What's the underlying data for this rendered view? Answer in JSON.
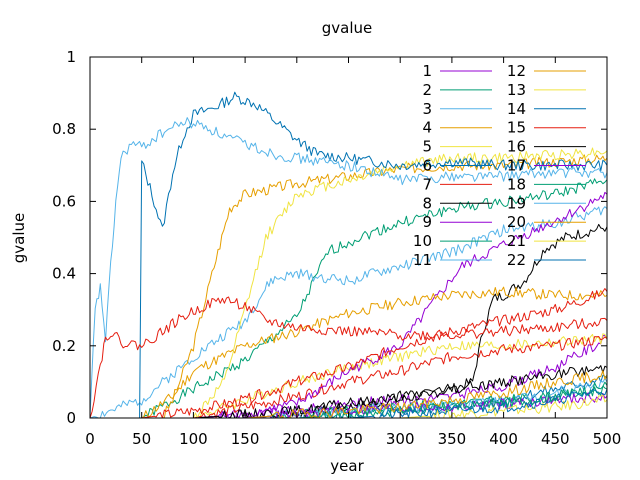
{
  "chart_data": {
    "type": "line",
    "title": "gvalue",
    "xlabel": "year",
    "ylabel": "gvalue",
    "xlim": [
      0,
      500
    ],
    "ylim": [
      0,
      1
    ],
    "x_ticks": [
      0,
      50,
      100,
      150,
      200,
      250,
      300,
      350,
      400,
      450,
      500
    ],
    "y_ticks": [
      0,
      0.2,
      0.4,
      0.6,
      0.8,
      1
    ],
    "grid": false,
    "legend_position": "top-right",
    "series": [
      {
        "name": "1",
        "color": "#9400d3",
        "points": [
          [
            0,
            0
          ],
          [
            100,
            0
          ],
          [
            150,
            0.01
          ],
          [
            200,
            0.02
          ],
          [
            250,
            0.04
          ],
          [
            300,
            0.05
          ],
          [
            350,
            0.06
          ],
          [
            400,
            0.09
          ],
          [
            450,
            0.14
          ],
          [
            500,
            0.22
          ]
        ]
      },
      {
        "name": "2",
        "color": "#009e73",
        "points": [
          [
            0,
            0
          ],
          [
            50,
            0
          ],
          [
            100,
            0.08
          ],
          [
            150,
            0.16
          ],
          [
            200,
            0.28
          ],
          [
            230,
            0.46
          ],
          [
            260,
            0.5
          ],
          [
            300,
            0.54
          ],
          [
            350,
            0.58
          ],
          [
            400,
            0.6
          ],
          [
            450,
            0.62
          ],
          [
            500,
            0.66
          ]
        ]
      },
      {
        "name": "3",
        "color": "#56b4e9",
        "points": [
          [
            0,
            0
          ],
          [
            50,
            0.05
          ],
          [
            100,
            0.17
          ],
          [
            150,
            0.27
          ],
          [
            175,
            0.38
          ],
          [
            200,
            0.4
          ],
          [
            250,
            0.38
          ],
          [
            300,
            0.42
          ],
          [
            350,
            0.46
          ],
          [
            400,
            0.52
          ],
          [
            450,
            0.54
          ],
          [
            500,
            0.58
          ]
        ]
      },
      {
        "name": "4",
        "color": "#e69f00",
        "points": [
          [
            0,
            0
          ],
          [
            70,
            0
          ],
          [
            80,
            0.05
          ],
          [
            100,
            0.2
          ],
          [
            120,
            0.42
          ],
          [
            135,
            0.58
          ],
          [
            150,
            0.62
          ],
          [
            200,
            0.65
          ],
          [
            250,
            0.67
          ],
          [
            300,
            0.69
          ],
          [
            350,
            0.7
          ],
          [
            400,
            0.7
          ],
          [
            450,
            0.71
          ],
          [
            500,
            0.72
          ]
        ]
      },
      {
        "name": "5",
        "color": "#f0e442",
        "points": [
          [
            0,
            0
          ],
          [
            100,
            0
          ],
          [
            150,
            0.05
          ],
          [
            200,
            0.1
          ],
          [
            250,
            0.14
          ],
          [
            300,
            0.17
          ],
          [
            350,
            0.2
          ],
          [
            400,
            0.2
          ],
          [
            450,
            0.21
          ],
          [
            500,
            0.22
          ]
        ]
      },
      {
        "name": "6",
        "color": "#0072b2",
        "points": [
          [
            0,
            0
          ],
          [
            200,
            0
          ],
          [
            250,
            0.01
          ],
          [
            300,
            0.02
          ],
          [
            350,
            0.03
          ],
          [
            400,
            0.05
          ],
          [
            450,
            0.08
          ],
          [
            500,
            0.11
          ]
        ]
      },
      {
        "name": "7",
        "color": "#e51e10",
        "points": [
          [
            0,
            0
          ],
          [
            100,
            0
          ],
          [
            150,
            0.03
          ],
          [
            200,
            0.06
          ],
          [
            250,
            0.1
          ],
          [
            300,
            0.13
          ],
          [
            350,
            0.17
          ],
          [
            400,
            0.19
          ],
          [
            450,
            0.2
          ],
          [
            500,
            0.22
          ]
        ]
      },
      {
        "name": "8",
        "color": "#000000",
        "points": [
          [
            0,
            0
          ],
          [
            150,
            0
          ],
          [
            200,
            0.01
          ],
          [
            250,
            0.03
          ],
          [
            300,
            0.05
          ],
          [
            350,
            0.08
          ],
          [
            370,
            0.1
          ],
          [
            380,
            0.24
          ],
          [
            390,
            0.33
          ],
          [
            400,
            0.34
          ],
          [
            420,
            0.38
          ],
          [
            440,
            0.47
          ],
          [
            460,
            0.5
          ],
          [
            500,
            0.53
          ]
        ]
      },
      {
        "name": "9",
        "color": "#9400d3",
        "points": [
          [
            0,
            0
          ],
          [
            100,
            0
          ],
          [
            150,
            0.01
          ],
          [
            200,
            0.04
          ],
          [
            250,
            0.13
          ],
          [
            300,
            0.2
          ],
          [
            340,
            0.35
          ],
          [
            360,
            0.42
          ],
          [
            380,
            0.45
          ],
          [
            400,
            0.48
          ],
          [
            430,
            0.52
          ],
          [
            460,
            0.56
          ],
          [
            500,
            0.62
          ]
        ]
      },
      {
        "name": "10",
        "color": "#009e73",
        "points": [
          [
            0,
            0
          ],
          [
            150,
            0
          ],
          [
            200,
            0.01
          ],
          [
            250,
            0.02
          ],
          [
            300,
            0.03
          ],
          [
            350,
            0.04
          ],
          [
            400,
            0.05
          ],
          [
            450,
            0.06
          ],
          [
            500,
            0.08
          ]
        ]
      },
      {
        "name": "11",
        "color": "#56b4e9",
        "points": [
          [
            0,
            0
          ],
          [
            150,
            0
          ],
          [
            200,
            0.01
          ],
          [
            250,
            0.02
          ],
          [
            300,
            0.03
          ],
          [
            350,
            0.04
          ],
          [
            400,
            0.05
          ],
          [
            450,
            0.07
          ],
          [
            500,
            0.1
          ]
        ]
      },
      {
        "name": "12",
        "color": "#e69f00",
        "points": [
          [
            0,
            0
          ],
          [
            50,
            0
          ],
          [
            80,
            0.06
          ],
          [
            100,
            0.13
          ],
          [
            150,
            0.2
          ],
          [
            200,
            0.24
          ],
          [
            250,
            0.29
          ],
          [
            300,
            0.32
          ],
          [
            350,
            0.34
          ],
          [
            400,
            0.35
          ],
          [
            450,
            0.34
          ],
          [
            500,
            0.34
          ]
        ]
      },
      {
        "name": "13",
        "color": "#f0e442",
        "points": [
          [
            0,
            0
          ],
          [
            100,
            0
          ],
          [
            130,
            0.1
          ],
          [
            150,
            0.3
          ],
          [
            170,
            0.5
          ],
          [
            200,
            0.62
          ],
          [
            250,
            0.66
          ],
          [
            300,
            0.7
          ],
          [
            350,
            0.72
          ],
          [
            400,
            0.72
          ],
          [
            450,
            0.73
          ],
          [
            500,
            0.74
          ]
        ]
      },
      {
        "name": "14",
        "color": "#0072b2",
        "points": [
          [
            0,
            0
          ],
          [
            48,
            0
          ],
          [
            50,
            0.71
          ],
          [
            60,
            0.62
          ],
          [
            70,
            0.52
          ],
          [
            80,
            0.68
          ],
          [
            90,
            0.78
          ],
          [
            100,
            0.84
          ],
          [
            120,
            0.86
          ],
          [
            140,
            0.89
          ],
          [
            160,
            0.87
          ],
          [
            180,
            0.82
          ],
          [
            200,
            0.77
          ],
          [
            220,
            0.73
          ],
          [
            250,
            0.72
          ],
          [
            300,
            0.7
          ],
          [
            350,
            0.71
          ],
          [
            400,
            0.7
          ],
          [
            450,
            0.7
          ],
          [
            500,
            0.7
          ]
        ]
      },
      {
        "name": "15",
        "color": "#e51e10",
        "points": [
          [
            0,
            0
          ],
          [
            50,
            0
          ],
          [
            100,
            0.02
          ],
          [
            150,
            0.05
          ],
          [
            200,
            0.1
          ],
          [
            250,
            0.14
          ],
          [
            300,
            0.2
          ],
          [
            350,
            0.24
          ],
          [
            400,
            0.27
          ],
          [
            450,
            0.3
          ],
          [
            500,
            0.35
          ]
        ]
      },
      {
        "name": "16",
        "color": "#000000",
        "points": [
          [
            0,
            0
          ],
          [
            100,
            0
          ],
          [
            150,
            0.01
          ],
          [
            200,
            0.02
          ],
          [
            250,
            0.04
          ],
          [
            300,
            0.06
          ],
          [
            350,
            0.08
          ],
          [
            400,
            0.1
          ],
          [
            450,
            0.12
          ],
          [
            500,
            0.14
          ]
        ]
      },
      {
        "name": "17",
        "color": "#9400d3",
        "points": [
          [
            0,
            0
          ],
          [
            150,
            0
          ],
          [
            200,
            0.01
          ],
          [
            250,
            0.02
          ],
          [
            300,
            0.03
          ],
          [
            350,
            0.03
          ],
          [
            400,
            0.04
          ],
          [
            450,
            0.05
          ],
          [
            500,
            0.06
          ]
        ]
      },
      {
        "name": "18",
        "color": "#009e73",
        "points": [
          [
            0,
            0
          ],
          [
            200,
            0
          ],
          [
            250,
            0.01
          ],
          [
            300,
            0.02
          ],
          [
            350,
            0.03
          ],
          [
            400,
            0.04
          ],
          [
            450,
            0.06
          ],
          [
            500,
            0.09
          ]
        ]
      },
      {
        "name": "19",
        "color": "#56b4e9",
        "points": [
          [
            0,
            0
          ],
          [
            5,
            0.3
          ],
          [
            10,
            0.36
          ],
          [
            15,
            0.22
          ],
          [
            20,
            0.42
          ],
          [
            25,
            0.6
          ],
          [
            30,
            0.72
          ],
          [
            40,
            0.76
          ],
          [
            50,
            0.75
          ],
          [
            70,
            0.79
          ],
          [
            90,
            0.82
          ],
          [
            110,
            0.81
          ],
          [
            130,
            0.78
          ],
          [
            150,
            0.76
          ],
          [
            180,
            0.73
          ],
          [
            200,
            0.72
          ],
          [
            250,
            0.7
          ],
          [
            300,
            0.66
          ],
          [
            350,
            0.67
          ],
          [
            400,
            0.67
          ],
          [
            450,
            0.68
          ],
          [
            500,
            0.68
          ]
        ]
      },
      {
        "name": "20",
        "color": "#e69f00",
        "points": [
          [
            0,
            0
          ],
          [
            150,
            0
          ],
          [
            200,
            0.01
          ],
          [
            250,
            0.02
          ],
          [
            300,
            0.03
          ],
          [
            350,
            0.05
          ],
          [
            400,
            0.07
          ],
          [
            450,
            0.1
          ],
          [
            500,
            0.12
          ]
        ]
      },
      {
        "name": "21",
        "color": "#f0e442",
        "points": [
          [
            0,
            0
          ],
          [
            300,
            0
          ],
          [
            350,
            0.01
          ],
          [
            400,
            0.02
          ],
          [
            450,
            0.03
          ],
          [
            500,
            0.05
          ]
        ]
      },
      {
        "name": "22",
        "color": "#0072b2",
        "points": [
          [
            0,
            0
          ],
          [
            250,
            0
          ],
          [
            300,
            0.01
          ],
          [
            350,
            0.02
          ],
          [
            400,
            0.03
          ],
          [
            450,
            0.05
          ],
          [
            500,
            0.08
          ]
        ]
      },
      {
        "name": "",
        "color": "#e51e10",
        "points": [
          [
            0,
            0
          ],
          [
            10,
            0.15
          ],
          [
            15,
            0.22
          ],
          [
            20,
            0.24
          ],
          [
            30,
            0.21
          ],
          [
            50,
            0.2
          ],
          [
            70,
            0.24
          ],
          [
            90,
            0.28
          ],
          [
            110,
            0.31
          ],
          [
            130,
            0.33
          ],
          [
            150,
            0.31
          ],
          [
            170,
            0.27
          ],
          [
            200,
            0.25
          ],
          [
            250,
            0.24
          ],
          [
            300,
            0.23
          ],
          [
            350,
            0.23
          ],
          [
            400,
            0.24
          ],
          [
            450,
            0.25
          ],
          [
            500,
            0.27
          ]
        ]
      }
    ]
  }
}
